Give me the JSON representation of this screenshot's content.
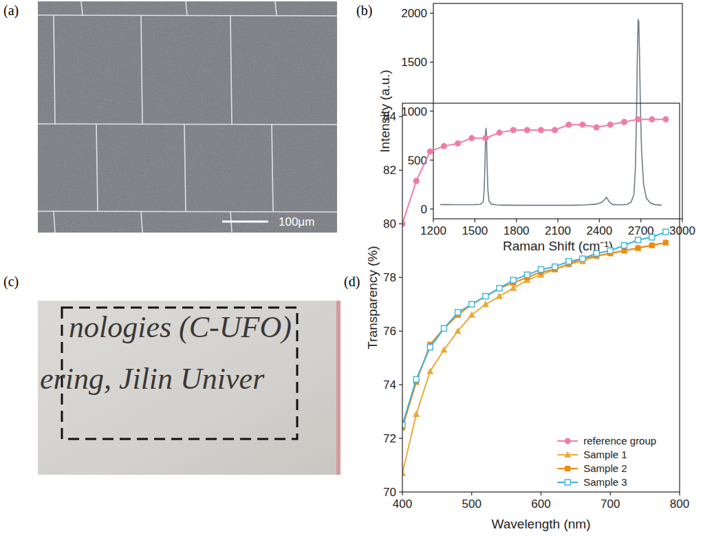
{
  "chart_data": [
    {
      "type": "line",
      "label": "(b)",
      "x_label": "Raman Shift (cm⁻¹)",
      "y_label": "Intensity (a.u.)",
      "x": [
        1250,
        1300,
        1350,
        1400,
        1450,
        1500,
        1540,
        1560,
        1568,
        1574,
        1578,
        1581,
        1584,
        1588,
        1594,
        1602,
        1620,
        1660,
        1700,
        1800,
        1900,
        2000,
        2100,
        2200,
        2300,
        2380,
        2420,
        2440,
        2450,
        2460,
        2475,
        2500,
        2550,
        2600,
        2630,
        2650,
        2660,
        2668,
        2674,
        2680,
        2685,
        2690,
        2696,
        2705,
        2720,
        2740,
        2770,
        2800,
        2850
      ],
      "values": [
        45,
        45,
        44,
        44,
        44,
        45,
        48,
        70,
        200,
        520,
        780,
        830,
        760,
        480,
        200,
        80,
        50,
        42,
        40,
        38,
        38,
        38,
        38,
        38,
        42,
        50,
        70,
        100,
        120,
        100,
        65,
        45,
        42,
        48,
        70,
        150,
        400,
        900,
        1500,
        1930,
        1920,
        1600,
        1100,
        600,
        250,
        110,
        60,
        45,
        40
      ],
      "color": "#707b88",
      "line_style": "solid",
      "xlim": [
        1200,
        3000
      ],
      "xticks": [
        1200,
        1500,
        1800,
        2100,
        2400,
        2700,
        3000
      ],
      "ylim": [
        -100,
        2100
      ],
      "yticks": [
        0,
        500,
        1000,
        1500,
        2000
      ],
      "grid": false
    },
    {
      "type": "line",
      "label": "(d)",
      "x_label": "Wavelength (nm)",
      "y_label": "Transparency (%)",
      "x": [
        400,
        420,
        440,
        460,
        480,
        500,
        520,
        540,
        560,
        580,
        600,
        620,
        640,
        660,
        680,
        700,
        720,
        740,
        760,
        780
      ],
      "series": [
        {
          "name": "reference group",
          "color": "#f07ca6",
          "marker": "circle",
          "values": [
            80.0,
            81.6,
            82.7,
            82.9,
            83.0,
            83.2,
            83.2,
            83.4,
            83.5,
            83.5,
            83.5,
            83.5,
            83.7,
            83.7,
            83.6,
            83.7,
            83.8,
            83.9,
            83.9,
            83.9
          ]
        },
        {
          "name": "Sample 1",
          "color": "#e9a93a",
          "marker": "triangle",
          "values": [
            70.7,
            72.9,
            74.5,
            75.3,
            76.0,
            76.6,
            77.0,
            77.3,
            77.6,
            77.9,
            78.1,
            78.3,
            78.5,
            78.6,
            78.8,
            78.9,
            79.0,
            79.1,
            79.2,
            79.3
          ]
        },
        {
          "name": "Sample 2",
          "color": "#f08a10",
          "marker": "square",
          "values": [
            72.4,
            74.1,
            75.5,
            76.1,
            76.6,
            77.0,
            77.3,
            77.6,
            77.8,
            78.0,
            78.2,
            78.3,
            78.5,
            78.7,
            78.8,
            78.9,
            79.0,
            79.1,
            79.2,
            79.3
          ]
        },
        {
          "name": "Sample 3",
          "color": "#3cb2d8",
          "marker": "open-square",
          "values": [
            72.5,
            74.2,
            75.4,
            76.1,
            76.7,
            77.0,
            77.3,
            77.6,
            77.9,
            78.1,
            78.3,
            78.4,
            78.6,
            78.7,
            78.9,
            79.0,
            79.2,
            79.4,
            79.5,
            79.7
          ]
        }
      ],
      "xlim": [
        400,
        800
      ],
      "xticks": [
        400,
        500,
        600,
        700,
        800
      ],
      "ylim": [
        70,
        84.5
      ],
      "yticks": [
        70,
        72,
        74,
        76,
        78,
        80,
        82,
        84
      ],
      "legend": "lower right",
      "grid": false
    }
  ],
  "images": [
    {
      "label": "(a)",
      "scale_bar": "100μm"
    },
    {
      "label": "(c)",
      "lines": [
        "nologies (C-UFO)",
        "ering, Jilin Univer"
      ]
    }
  ]
}
